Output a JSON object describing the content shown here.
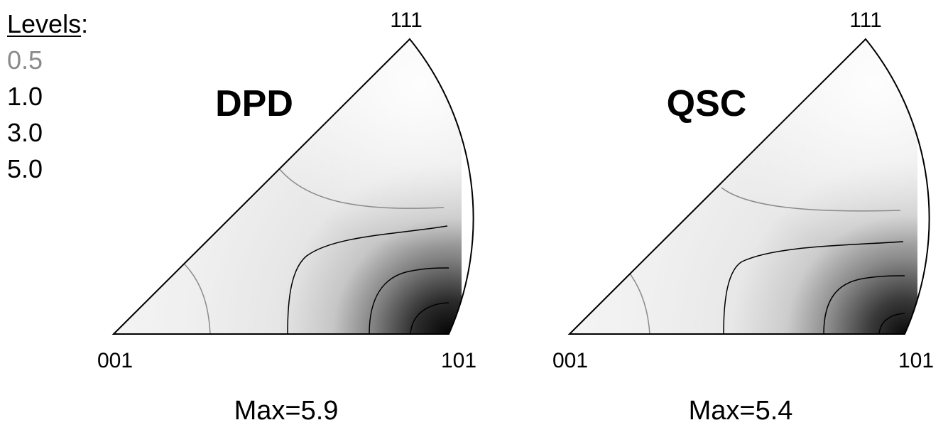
{
  "legend": {
    "title_word": "Levels",
    "title_suffix": ":",
    "levels": [
      {
        "label": "0.5",
        "color": "#8a8a8a"
      },
      {
        "label": "1.0",
        "color": "#000000"
      },
      {
        "label": "3.0",
        "color": "#000000"
      },
      {
        "label": "5.0",
        "color": "#000000"
      }
    ]
  },
  "panels": [
    {
      "title": "DPD",
      "max_label": "Max=5.9",
      "vertex_top": "111",
      "vertex_left": "001",
      "vertex_right": "101"
    },
    {
      "title": "QSC",
      "max_label": "Max=5.4",
      "vertex_top": "111",
      "vertex_left": "001",
      "vertex_right": "101"
    }
  ]
}
